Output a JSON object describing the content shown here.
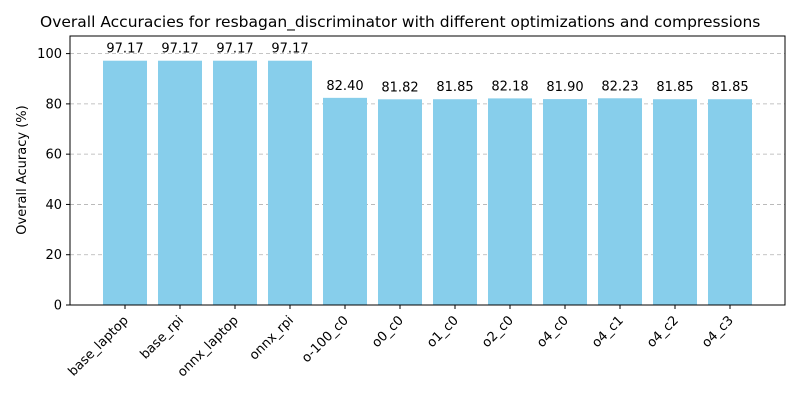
{
  "chart_data": {
    "type": "bar",
    "title": "Overall Accuracies for resbagan_discriminator with different optimizations and compressions",
    "xlabel": "",
    "ylabel": "Overall Acuracy (%)",
    "ylim": [
      0,
      107
    ],
    "yticks": [
      0,
      20,
      40,
      60,
      80,
      100
    ],
    "grid": "y-dashed",
    "bar_color": "#87ceeb",
    "categories": [
      "base_laptop",
      "base_rpi",
      "onnx_laptop",
      "onnx_rpi",
      "o-100_c0",
      "o0_c0",
      "o1_c0",
      "o2_c0",
      "o4_c0",
      "o4_c1",
      "o4_c2",
      "o4_c3"
    ],
    "values": [
      97.17,
      97.17,
      97.17,
      97.17,
      82.4,
      81.82,
      81.85,
      82.18,
      81.9,
      82.23,
      81.85,
      81.85
    ],
    "data_labels": [
      "97.17",
      "97.17",
      "97.17",
      "97.17",
      "82.40",
      "81.82",
      "81.85",
      "82.18",
      "81.90",
      "82.23",
      "81.85",
      "81.85"
    ]
  }
}
